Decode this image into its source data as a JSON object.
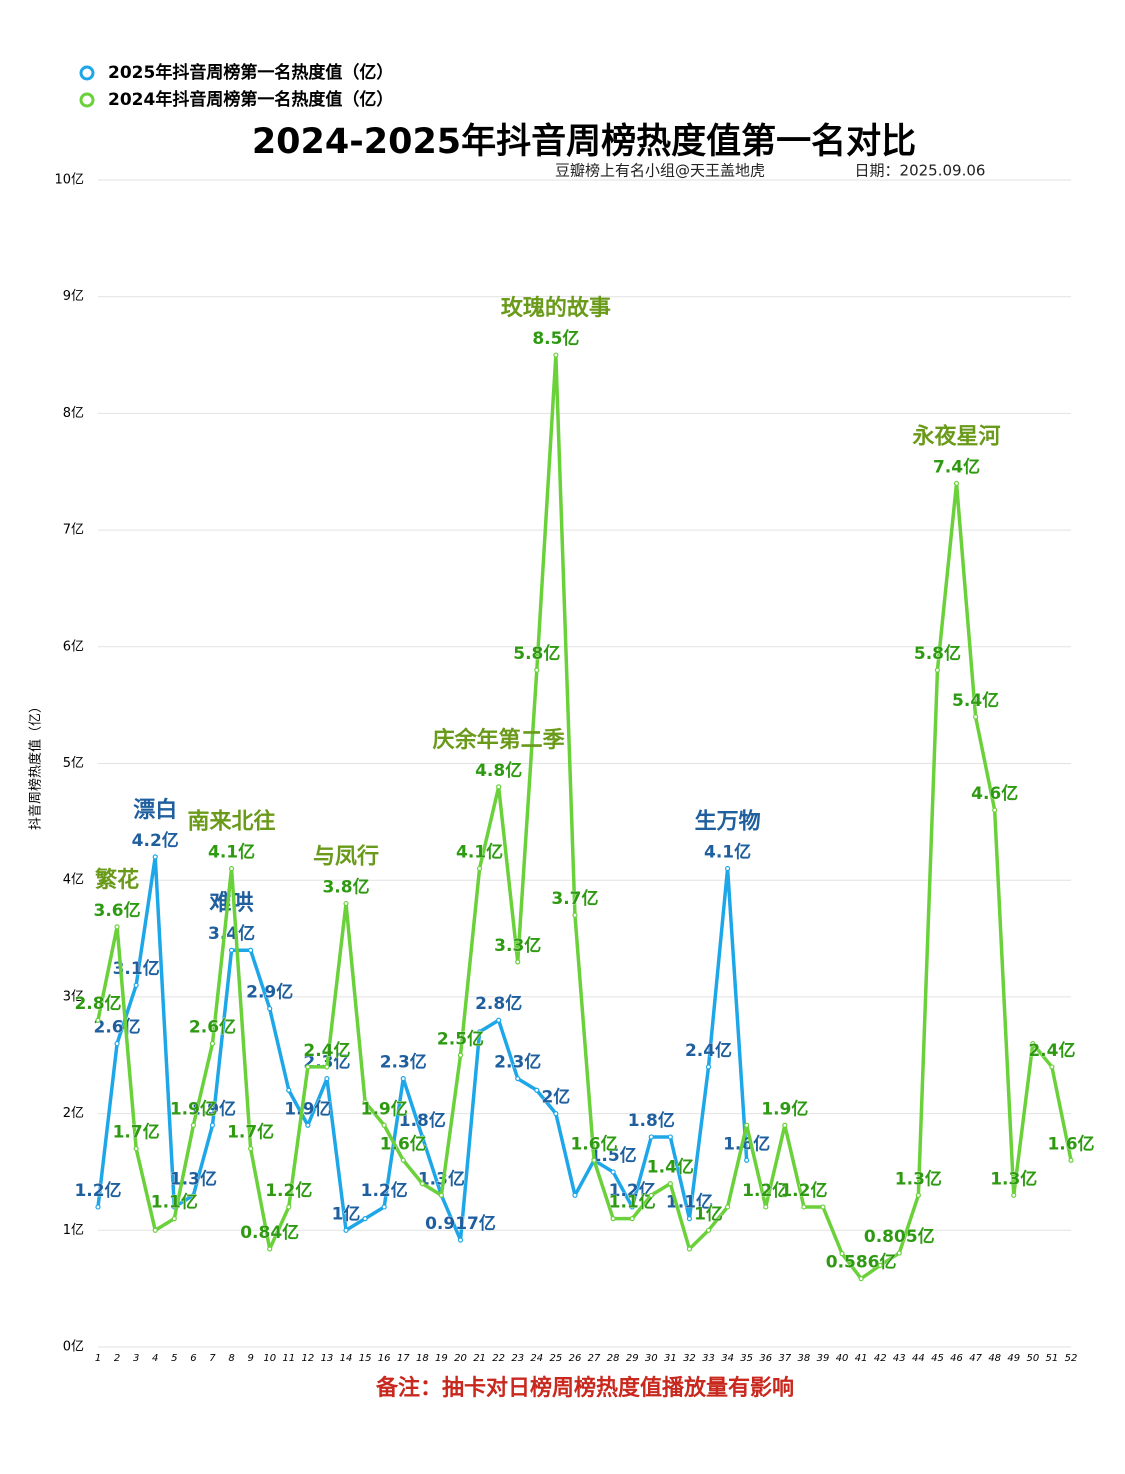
{
  "chart_data": {
    "type": "line",
    "title": "2024-2025年抖音周榜热度值第一名对比",
    "subtitle": "豆瓣榜上有名小组@天王盖地虎",
    "date": "日期：2025.09.06",
    "note": "备注：抽卡对日榜周榜热度值播放量有影响",
    "y_label": "抖音周榜热度值（亿）",
    "grid": true,
    "legend": "top-left",
    "categories": [
      1,
      2,
      3,
      4,
      5,
      6,
      7,
      8,
      9,
      10,
      11,
      12,
      13,
      14,
      15,
      16,
      17,
      18,
      19,
      20,
      21,
      22,
      23,
      24,
      25,
      26,
      27,
      28,
      29,
      30,
      31,
      32,
      33,
      34,
      35,
      36,
      37,
      38,
      39,
      40,
      41,
      42,
      43,
      44,
      45,
      46,
      47,
      48,
      49,
      50,
      51,
      52
    ],
    "ylim": [
      0,
      10
    ],
    "yticks": [
      {
        "value": 0,
        "label": "0亿"
      },
      {
        "value": 1,
        "label": "1亿"
      },
      {
        "value": 2,
        "label": "2亿"
      },
      {
        "value": 3,
        "label": "3亿"
      },
      {
        "value": 4,
        "label": "4亿"
      },
      {
        "value": 5,
        "label": "5亿"
      },
      {
        "value": 6,
        "label": "6亿"
      },
      {
        "value": 7,
        "label": "7亿"
      },
      {
        "value": 8,
        "label": "8亿"
      },
      {
        "value": 9,
        "label": "9亿"
      },
      {
        "value": 10,
        "label": "10亿"
      }
    ],
    "series": [
      {
        "name": "2025年抖音周榜第一名热度值（亿）",
        "color": "#1ea7e8",
        "label_color": "#1f5f9e",
        "values": [
          1.2,
          2.6,
          3.1,
          4.2,
          1.2,
          1.3,
          1.9,
          3.4,
          3.4,
          2.9,
          2.2,
          1.9,
          2.3,
          1.0,
          1.1,
          1.2,
          2.3,
          1.8,
          1.3,
          0.917,
          2.7,
          2.8,
          2.3,
          2.2,
          2.0,
          1.3,
          1.6,
          1.5,
          1.2,
          1.8,
          1.8,
          1.1,
          2.4,
          4.1,
          1.6,
          null,
          null,
          null,
          null,
          null,
          null,
          null,
          null,
          null,
          null,
          null,
          null,
          null,
          null,
          null,
          null,
          null
        ],
        "value_labels": [
          "1.2亿",
          "2.6亿",
          "3.1亿",
          "4.2亿",
          null,
          "1.3亿",
          "1.9亿",
          "3.4亿",
          null,
          "2.9亿",
          null,
          "1.9亿",
          "2.3亿",
          "1亿",
          null,
          "1.2亿",
          "2.3亿",
          "1.8亿",
          "1.3亿",
          "0.917亿",
          null,
          "2.8亿",
          "2.3亿",
          null,
          "2亿",
          null,
          "1.6亿",
          "1.5亿",
          "1.2亿",
          "1.8亿",
          null,
          "1.1亿",
          "2.4亿",
          "4.1亿",
          "1.6亿",
          null,
          null,
          null,
          null,
          null,
          null,
          null,
          null,
          null,
          null,
          null,
          null,
          null,
          null,
          null,
          null,
          null
        ],
        "annotations": [
          {
            "text": "漂白",
            "x": 4
          },
          {
            "text": "难哄",
            "x": 8
          },
          {
            "text": "生万物",
            "x": 34
          }
        ]
      },
      {
        "name": "2024年抖音周榜第一名热度值（亿）",
        "color": "#6ad13a",
        "label_color": "#2e9a12",
        "values": [
          2.8,
          3.6,
          1.7,
          1.0,
          1.1,
          1.9,
          2.6,
          4.1,
          1.7,
          0.84,
          1.2,
          2.4,
          2.4,
          3.8,
          2.1,
          1.9,
          1.6,
          1.4,
          1.3,
          2.5,
          4.1,
          4.8,
          3.3,
          5.8,
          8.5,
          3.7,
          1.6,
          1.1,
          1.1,
          1.3,
          1.4,
          0.84,
          1.0,
          1.2,
          1.9,
          1.2,
          1.9,
          1.2,
          1.2,
          0.8,
          0.586,
          0.7,
          0.805,
          1.3,
          5.8,
          7.4,
          5.4,
          4.6,
          1.3,
          2.6,
          2.4,
          1.6
        ],
        "value_labels": [
          "2.8亿",
          "3.6亿",
          "1.7亿",
          null,
          "1.1亿",
          "1.9亿",
          "2.6亿",
          "4.1亿",
          "1.7亿",
          "0.84亿",
          "1.2亿",
          null,
          "2.4亿",
          "3.8亿",
          null,
          "1.9亿",
          "1.6亿",
          null,
          null,
          "2.5亿",
          "4.1亿",
          "4.8亿",
          "3.3亿",
          "5.8亿",
          "8.5亿",
          "3.7亿",
          "1.6亿",
          null,
          "1.1亿",
          null,
          "1.4亿",
          null,
          "1亿",
          null,
          null,
          "1.2亿",
          "1.9亿",
          "1.2亿",
          null,
          null,
          "0.586亿",
          null,
          "0.805亿",
          "1.3亿",
          "5.8亿",
          "7.4亿",
          "5.4亿",
          "4.6亿",
          "1.3亿",
          null,
          "2.4亿",
          "1.6亿"
        ],
        "annotations": [
          {
            "text": "繁花",
            "x": 2
          },
          {
            "text": "南来北往",
            "x": 8
          },
          {
            "text": "与凤行",
            "x": 14
          },
          {
            "text": "庆余年第二季",
            "x": 22
          },
          {
            "text": "玫瑰的故事",
            "x": 25
          },
          {
            "text": "永夜星河",
            "x": 46
          }
        ]
      }
    ]
  }
}
